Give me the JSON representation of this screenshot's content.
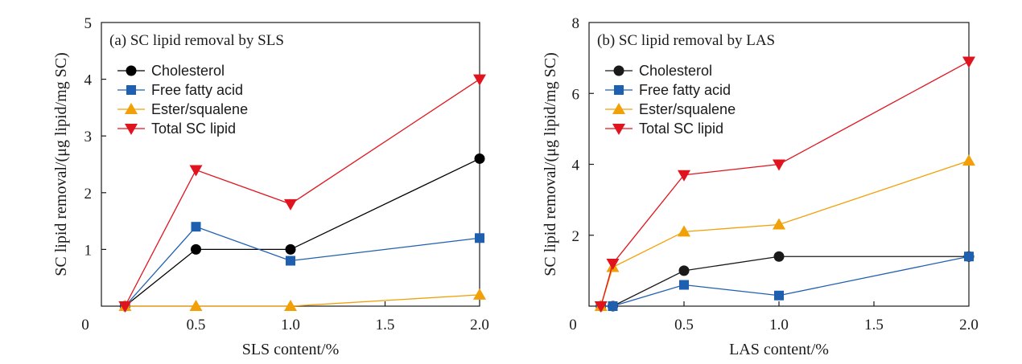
{
  "chart_data": [
    {
      "type": "line",
      "title": "(a)  SC lipid removal by SLS",
      "xlabel": "SLS content/%",
      "ylabel": "SC lipid removal/(μg lipid/mg SC)",
      "xlim": [
        0,
        2.0
      ],
      "ylim": [
        0,
        5
      ],
      "xticks": [
        0,
        0.5,
        1.0,
        1.5,
        2.0
      ],
      "xtick_labels": [
        "0",
        "0.5",
        "1.0",
        "1.5",
        "2.0"
      ],
      "yticks": [
        0,
        1,
        2,
        3,
        4,
        5
      ],
      "ytick_labels": [
        "0",
        "1",
        "2",
        "3",
        "4",
        "5"
      ],
      "grid": false,
      "legend_position": "top-left",
      "series": [
        {
          "name": "Cholesterol",
          "marker": "circle",
          "color": "#000000",
          "line_color": "#000000",
          "x": [
            0.125,
            0.5,
            1.0,
            2.0
          ],
          "y": [
            0,
            1.0,
            1.0,
            2.6
          ]
        },
        {
          "name": "Free fatty acid",
          "marker": "square",
          "color": "#1f5fb0",
          "line_color": "#1f5fb0",
          "x": [
            0.125,
            0.5,
            1.0,
            2.0
          ],
          "y": [
            0,
            1.4,
            0.8,
            1.2
          ]
        },
        {
          "name": "Ester/squalene",
          "marker": "triangle-up",
          "color": "#f2a007",
          "line_color": "#f2a007",
          "x": [
            0.125,
            0.5,
            1.0,
            2.0
          ],
          "y": [
            0,
            0,
            0,
            0.2
          ]
        },
        {
          "name": "Total SC lipid",
          "marker": "triangle-down",
          "color": "#e0141e",
          "line_color": "#e0141e",
          "x": [
            0.125,
            0.5,
            1.0,
            2.0
          ],
          "y": [
            0,
            2.4,
            1.8,
            4.0
          ]
        }
      ]
    },
    {
      "type": "line",
      "title": "(b)  SC lipid removal by LAS",
      "xlabel": "LAS content/%",
      "ylabel": "SC lipid removal/(μg lipid/mg SC)",
      "xlim": [
        0,
        2.0
      ],
      "ylim": [
        0,
        8
      ],
      "xticks": [
        0,
        0.5,
        1.0,
        1.5,
        2.0
      ],
      "xtick_labels": [
        "0",
        "0.5",
        "1.0",
        "1.5",
        "2.0"
      ],
      "yticks": [
        0,
        2,
        4,
        6,
        8
      ],
      "ytick_labels": [
        "0",
        "2",
        "4",
        "6",
        "8"
      ],
      "grid": false,
      "legend_position": "top-left",
      "series": [
        {
          "name": "Cholesterol",
          "marker": "circle",
          "color": "#1a1a1a",
          "line_color": "#1a1a1a",
          "x": [
            0.0625,
            0.125,
            0.5,
            1.0,
            2.0
          ],
          "y": [
            0,
            0,
            1.0,
            1.4,
            1.4
          ]
        },
        {
          "name": "Free fatty acid",
          "marker": "square",
          "color": "#1f5fb0",
          "line_color": "#1f5fb0",
          "x": [
            0.0625,
            0.125,
            0.5,
            1.0,
            2.0
          ],
          "y": [
            0,
            0,
            0.6,
            0.3,
            1.4
          ]
        },
        {
          "name": "Ester/squalene",
          "marker": "triangle-up",
          "color": "#f2a007",
          "line_color": "#f2a007",
          "x": [
            0.0625,
            0.125,
            0.5,
            1.0,
            2.0
          ],
          "y": [
            0,
            1.1,
            2.1,
            2.3,
            4.1
          ]
        },
        {
          "name": "Total SC lipid",
          "marker": "triangle-down",
          "color": "#e0141e",
          "line_color": "#e0141e",
          "x": [
            0.0625,
            0.125,
            0.5,
            1.0,
            2.0
          ],
          "y": [
            0,
            1.2,
            3.7,
            4.0,
            6.9
          ]
        }
      ]
    }
  ]
}
